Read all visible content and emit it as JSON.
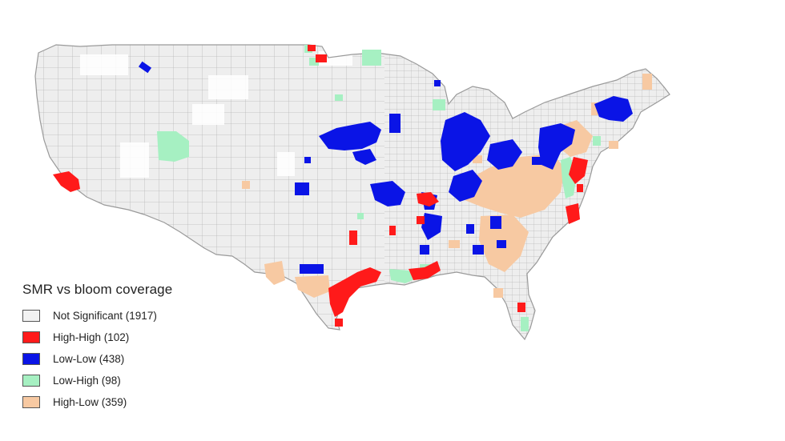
{
  "map": {
    "region": "Contiguous United States, county level",
    "base_fill": "#eeeeee",
    "border_color": "#b9b9b9"
  },
  "legend": {
    "title": "SMR vs bloom coverage",
    "items": [
      {
        "key": "not-significant",
        "label": "Not Significant (1917)",
        "color": "#f2f2f2",
        "count": 1917
      },
      {
        "key": "high-high",
        "label": "High-High (102)",
        "color": "#ff1a1a",
        "count": 102
      },
      {
        "key": "low-low",
        "label": "Low-Low (438)",
        "color": "#0a14e6",
        "count": 438
      },
      {
        "key": "low-high",
        "label": "Low-High (98)",
        "color": "#a6f0c2",
        "count": 98
      },
      {
        "key": "high-low",
        "label": "High-Low (359)",
        "color": "#f7c9a2",
        "count": 359
      }
    ]
  }
}
